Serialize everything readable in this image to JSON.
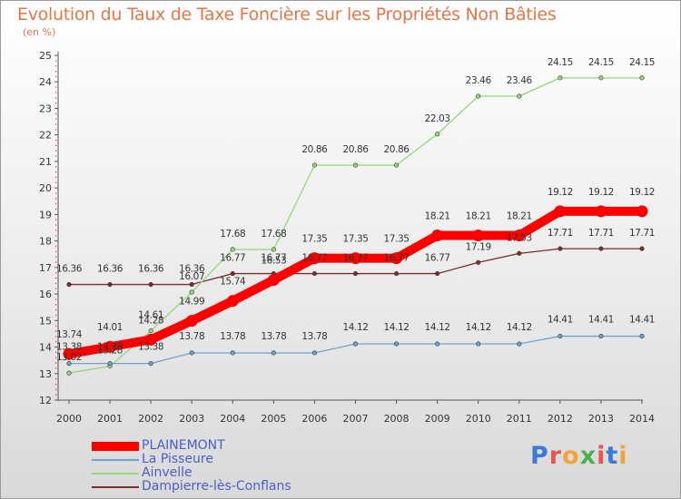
{
  "header": {
    "title": "Evolution du Taux de Taxe Foncière sur les Propriétés Non Bâties",
    "subtitle": "(en %)"
  },
  "logo": {
    "text": "Proxiti",
    "colors": [
      "#3a7bd5",
      "#e8554e",
      "#f2a33a",
      "#4caf50",
      "#e8554e",
      "#3a7bd5",
      "#f2a33a"
    ]
  },
  "chart_data": {
    "type": "line",
    "x": [
      2000,
      2001,
      2002,
      2003,
      2004,
      2005,
      2006,
      2007,
      2008,
      2009,
      2010,
      2011,
      2012,
      2013,
      2014
    ],
    "ylim": [
      12,
      25
    ],
    "yticks": [
      12,
      13,
      14,
      15,
      16,
      17,
      18,
      19,
      20,
      21,
      22,
      23,
      24,
      25
    ],
    "grid": false,
    "legend": "bottom-left",
    "series": [
      {
        "name": "Dampierre-lès-Conflans",
        "color": "#7a2c2c",
        "width": 1.3,
        "marker": 4.5,
        "values": [
          16.36,
          16.36,
          16.36,
          16.36,
          16.77,
          16.77,
          16.77,
          16.77,
          16.77,
          16.77,
          17.19,
          17.53,
          17.71,
          17.71,
          17.71
        ]
      },
      {
        "name": "Ainvelle",
        "color": "#96d67a",
        "width": 1.3,
        "marker": 4.5,
        "values": [
          13.02,
          13.28,
          14.61,
          16.07,
          17.68,
          17.68,
          20.86,
          20.86,
          20.86,
          22.03,
          23.46,
          23.46,
          24.15,
          24.15,
          24.15
        ]
      },
      {
        "name": "La Pisseure",
        "color": "#6fa3cf",
        "width": 1.3,
        "marker": 4.5,
        "values": [
          13.38,
          13.38,
          13.38,
          13.78,
          13.78,
          13.78,
          13.78,
          14.12,
          14.12,
          14.12,
          14.12,
          14.12,
          14.41,
          14.41,
          14.41
        ]
      },
      {
        "name": "PLAINEMONT",
        "color": "#ff0000",
        "width": 10,
        "marker": 7,
        "values": [
          13.74,
          14.01,
          14.28,
          14.99,
          15.74,
          16.53,
          17.35,
          17.35,
          17.35,
          18.21,
          18.21,
          18.21,
          19.12,
          19.12,
          19.12
        ]
      }
    ],
    "data_labels": [
      {
        "series": "PLAINEMONT",
        "values": [
          "13.74",
          "14.01",
          "14.28",
          "14.99",
          "15.74",
          "16.53",
          "17.35",
          "17.35",
          "17.35",
          "18.21",
          "18.21",
          "18.21",
          "19.12",
          "19.12",
          "19.12"
        ]
      },
      {
        "series": "La Pisseure",
        "values": [
          "13.38",
          "13.38",
          "13.38",
          "13.78",
          "13.78",
          "13.78",
          "13.78",
          "14.12",
          "14.12",
          "14.12",
          "14.12",
          "14.12",
          "14.41",
          "14.41",
          "14.41"
        ]
      },
      {
        "series": "Ainvelle",
        "values": [
          "13.02",
          "13.28",
          "14.61",
          "16.07",
          "17.68",
          "17.68",
          "20.86",
          "20.86",
          "20.86",
          "22.03",
          "23.46",
          "23.46",
          "24.15",
          "24.15",
          "24.15"
        ]
      },
      {
        "series": "Dampierre-lès-Conflans",
        "values": [
          "16.36",
          "16.36",
          "16.36",
          "16.36",
          "16.77",
          "16.77",
          "16.77",
          "16.77",
          "16.77",
          "16.77",
          "17.19",
          "17.53",
          "17.71",
          "17.71",
          "17.71"
        ]
      }
    ]
  },
  "legend": {
    "items": [
      {
        "label": "PLAINEMONT",
        "color": "#ff0000",
        "thickness": 10
      },
      {
        "label": "La Pisseure",
        "color": "#6fa3cf",
        "thickness": 2
      },
      {
        "label": "Ainvelle",
        "color": "#96d67a",
        "thickness": 2
      },
      {
        "label": "Dampierre-lès-Conflans",
        "color": "#7a2c2c",
        "thickness": 2
      }
    ]
  }
}
